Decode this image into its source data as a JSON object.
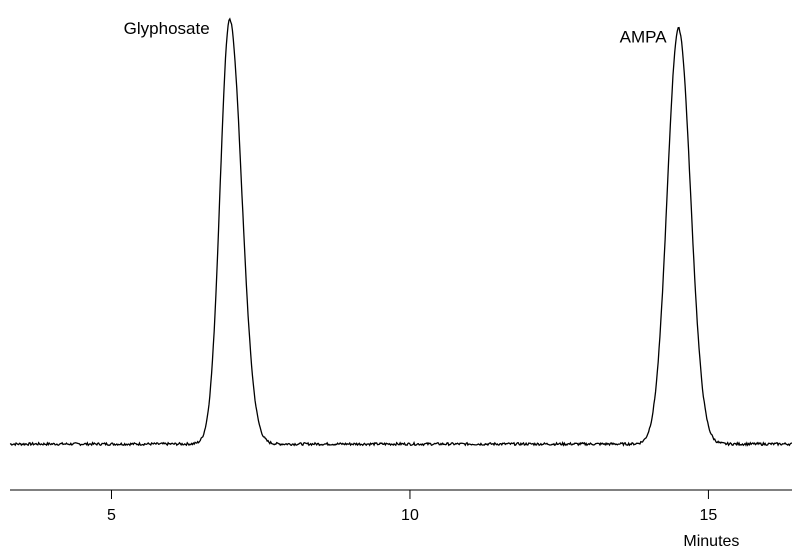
{
  "chart_data": {
    "type": "line",
    "title": "",
    "xlabel": "Minutes",
    "ylabel": "",
    "xlim": [
      3.3,
      16.4
    ],
    "ylim": [
      0,
      1
    ],
    "grid": false,
    "x_ticks": [
      5,
      10,
      15
    ],
    "x_tick_labels": [
      "5",
      "10",
      "15"
    ],
    "baseline": 0.0,
    "peaks": [
      {
        "label": "Glyphosate",
        "rt": 6.98,
        "height": 1.0,
        "sigma_left": 0.16,
        "sigma_right": 0.2
      },
      {
        "label": "AMPA",
        "rt": 14.5,
        "height": 0.98,
        "sigma_left": 0.19,
        "sigma_right": 0.2
      }
    ],
    "series": [
      {
        "x": [
          3.3,
          4.0,
          5.0,
          6.0,
          6.3,
          6.5,
          6.6,
          6.7,
          6.8,
          6.9,
          6.98,
          7.05,
          7.15,
          7.25,
          7.35,
          7.45,
          7.6,
          7.8,
          8.0,
          9.0,
          10.0,
          11.0,
          12.0,
          13.0,
          13.6,
          13.85,
          14.0,
          14.1,
          14.2,
          14.3,
          14.4,
          14.5,
          14.6,
          14.7,
          14.8,
          14.9,
          15.0,
          15.1,
          15.3,
          15.6,
          16.0,
          16.4
        ],
        "y": [
          0.0,
          0.0,
          0.003,
          0.004,
          0.01,
          0.06,
          0.17,
          0.37,
          0.64,
          0.89,
          1.0,
          0.96,
          0.83,
          0.61,
          0.39,
          0.21,
          0.07,
          0.01,
          0.0,
          0.0,
          0.0,
          0.0,
          0.002,
          0.003,
          0.02,
          0.06,
          0.17,
          0.28,
          0.48,
          0.72,
          0.92,
          0.98,
          0.9,
          0.69,
          0.44,
          0.24,
          0.1,
          0.04,
          0.01,
          0.002,
          0.0,
          0.0
        ]
      }
    ]
  }
}
